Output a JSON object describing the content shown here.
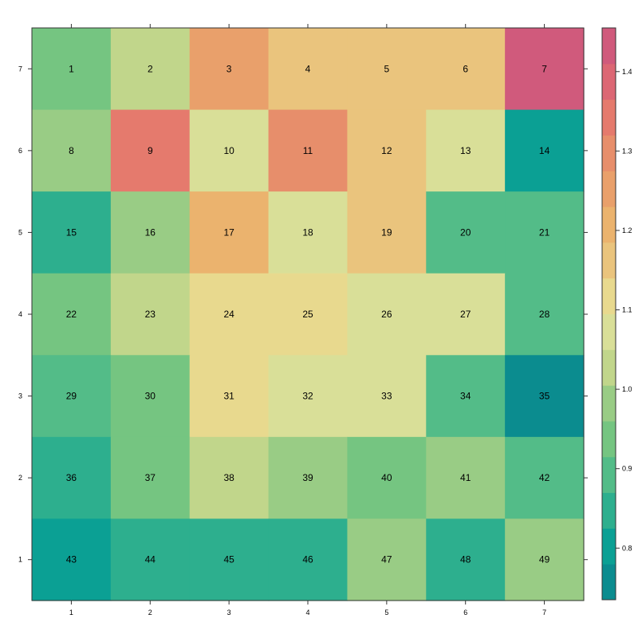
{
  "chart_data": {
    "type": "heatmap",
    "title": "",
    "xlabel": "",
    "ylabel": "",
    "x_ticks": [
      "1",
      "2",
      "3",
      "4",
      "5",
      "6",
      "7"
    ],
    "y_ticks": [
      "1",
      "2",
      "3",
      "4",
      "5",
      "6",
      "7"
    ],
    "rows_top_to_bottom": [
      7,
      6,
      5,
      4,
      3,
      2,
      1
    ],
    "cell_labels": [
      [
        1,
        2,
        3,
        4,
        5,
        6,
        7
      ],
      [
        8,
        9,
        10,
        11,
        12,
        13,
        14
      ],
      [
        15,
        16,
        17,
        18,
        19,
        20,
        21
      ],
      [
        22,
        23,
        24,
        25,
        26,
        27,
        28
      ],
      [
        29,
        30,
        31,
        32,
        33,
        34,
        35
      ],
      [
        36,
        37,
        38,
        39,
        40,
        41,
        42
      ],
      [
        43,
        44,
        45,
        46,
        47,
        48,
        49
      ]
    ],
    "values": [
      [
        0.94,
        1.04,
        1.25,
        1.17,
        1.17,
        1.17,
        1.43
      ],
      [
        0.98,
        1.34,
        1.07,
        1.3,
        1.17,
        1.07,
        0.8
      ],
      [
        0.85,
        0.98,
        1.22,
        1.07,
        1.17,
        0.89,
        0.89
      ],
      [
        0.94,
        1.04,
        1.12,
        1.12,
        1.07,
        1.07,
        0.89
      ],
      [
        0.89,
        0.94,
        1.12,
        1.07,
        1.07,
        0.89,
        0.76
      ],
      [
        0.85,
        0.94,
        1.04,
        0.98,
        0.94,
        0.98,
        0.89
      ],
      [
        0.8,
        0.85,
        0.85,
        0.85,
        0.98,
        0.85,
        0.98
      ]
    ],
    "colorbar": {
      "ticks": [
        "0.8",
        "0.9",
        "1.0",
        "1.1",
        "1.2",
        "1.3",
        "1.4"
      ],
      "range": [
        0.735,
        1.455
      ],
      "bins": 16,
      "colors": [
        "#0b8c8f",
        "#0ba094",
        "#2daf8e",
        "#53bc88",
        "#75c581",
        "#99cc85",
        "#c1d68b",
        "#d9df98",
        "#e8d98e",
        "#eac47d",
        "#ebb36e",
        "#e9a06b",
        "#e78e6b",
        "#e57a6d",
        "#dc6774",
        "#d05a7c"
      ]
    },
    "grid": false,
    "legend": "right"
  }
}
